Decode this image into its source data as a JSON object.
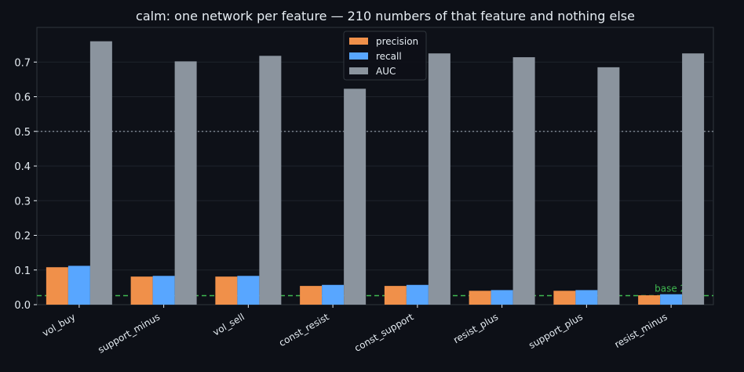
{
  "chart_data": {
    "type": "bar",
    "title": "calm: one network per feature — 210 numbers of that feature and nothing else",
    "xlabel": "",
    "ylabel": "",
    "ylim": [
      0,
      0.8
    ],
    "yticks": [
      "0.0",
      "0.1",
      "0.2",
      "0.3",
      "0.4",
      "0.5",
      "0.6",
      "0.7"
    ],
    "grid": true,
    "legend_position": "top-center",
    "categories": [
      "vol_buy",
      "support_minus",
      "vol_sell",
      "const_resist",
      "const_support",
      "resist_plus",
      "support_plus",
      "resist_minus"
    ],
    "series": [
      {
        "name": "precision",
        "color": "#f0904a",
        "values": [
          0.108,
          0.081,
          0.081,
          0.054,
          0.054,
          0.04,
          0.04,
          0.027
        ]
      },
      {
        "name": "recall",
        "color": "#58a6ff",
        "values": [
          0.112,
          0.083,
          0.083,
          0.057,
          0.057,
          0.042,
          0.042,
          0.03
        ]
      },
      {
        "name": "AUC",
        "color": "#8b949e",
        "values": [
          0.76,
          0.702,
          0.718,
          0.623,
          0.725,
          0.714,
          0.685,
          0.725
        ]
      }
    ],
    "reference_lines": [
      {
        "value": 0.5,
        "color": "#8b949e",
        "style": "dotted"
      },
      {
        "value": 0.026,
        "color": "#3fb950",
        "style": "dashed",
        "label": "base 2.5%"
      }
    ]
  },
  "colors": {
    "background": "#0d1017",
    "axes_face": "#0e1118",
    "axes_edge": "#30363d",
    "text": "#e6edf3",
    "grid": "#1f242c"
  }
}
